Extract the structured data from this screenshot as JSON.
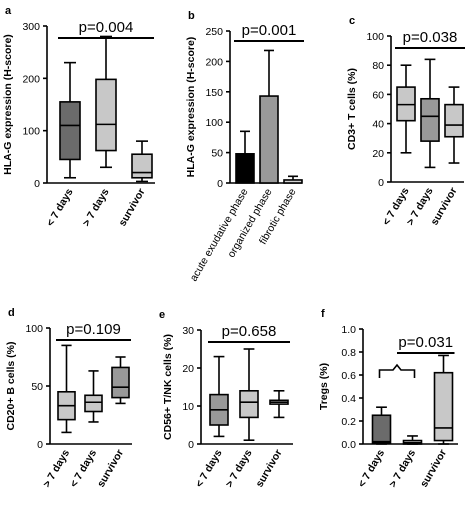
{
  "chart_data": [
    {
      "type": "box",
      "panel": "a",
      "ylabel": "HLA-G expression (H-score)",
      "ylim": [
        0,
        300
      ],
      "yticks": [
        0,
        100,
        200,
        300
      ],
      "categories": [
        "< 7 days",
        "> 7 days",
        "survivor"
      ],
      "boxes": [
        {
          "min": 10,
          "q1": 45,
          "median": 110,
          "q3": 155,
          "max": 230
        },
        {
          "min": 30,
          "q1": 62,
          "median": 112,
          "q3": 198,
          "max": 280
        },
        {
          "min": 3,
          "q1": 10,
          "median": 20,
          "q3": 55,
          "max": 80
        }
      ],
      "fills": [
        "#6b6b6b",
        "#c8c8c8",
        "#c8c8c8"
      ],
      "pvalue": "p=0.004",
      "bracket": {
        "from": 0,
        "to": 2
      }
    },
    {
      "type": "bar",
      "panel": "b",
      "ylabel": "HLA-G expression (H-score)",
      "ylim": [
        0,
        250
      ],
      "yticks": [
        0,
        50,
        100,
        150,
        200,
        250
      ],
      "categories": [
        "acute exudative phase",
        "organized phase",
        "fibrotic phase"
      ],
      "values": [
        48,
        143,
        5
      ],
      "errors": [
        85,
        218,
        11
      ],
      "fills": [
        "#000000",
        "#999999",
        "#d2d2d2"
      ],
      "pvalue": "p=0.001",
      "bracket": {
        "from": 0,
        "to": 2
      }
    },
    {
      "type": "box",
      "panel": "c",
      "ylabel": "CD3+ T cells (%)",
      "ylim": [
        0,
        100
      ],
      "yticks": [
        0,
        20,
        40,
        60,
        80,
        100
      ],
      "categories": [
        "< 7 days",
        "> 7 days",
        "survivor"
      ],
      "boxes": [
        {
          "min": 20,
          "q1": 42,
          "median": 53,
          "q3": 65,
          "max": 80
        },
        {
          "min": 10,
          "q1": 28,
          "median": 45,
          "q3": 57,
          "max": 84
        },
        {
          "min": 13,
          "q1": 31,
          "median": 39,
          "q3": 53,
          "max": 65
        }
      ],
      "fills": [
        "#c8c8c8",
        "#999999",
        "#c8c8c8"
      ],
      "pvalue": "p=0.038",
      "bracket": {
        "from": 0,
        "to": 2
      }
    },
    {
      "type": "box",
      "panel": "d",
      "ylabel": "CD20+ B cells (%)",
      "ylim": [
        0,
        100
      ],
      "yticks": [
        0,
        50,
        100
      ],
      "categories": [
        "> 7 days",
        "< 7 days",
        "survivor"
      ],
      "boxes": [
        {
          "min": 10,
          "q1": 21,
          "median": 33,
          "q3": 45,
          "max": 85
        },
        {
          "min": 19,
          "q1": 28,
          "median": 36,
          "q3": 42,
          "max": 63
        },
        {
          "min": 35,
          "q1": 40,
          "median": 49,
          "q3": 66,
          "max": 75
        }
      ],
      "fills": [
        "#c8c8c8",
        "#c8c8c8",
        "#999999"
      ],
      "pvalue": "p=0.109",
      "bracket": {
        "from": 0,
        "to": 2
      }
    },
    {
      "type": "box",
      "panel": "e",
      "ylabel": "CD56+ T/NK cells (%)",
      "ylim": [
        0,
        30
      ],
      "yticks": [
        0,
        10,
        20,
        30
      ],
      "categories": [
        "< 7 days",
        "> 7 days",
        "survivor"
      ],
      "boxes": [
        {
          "min": 2,
          "q1": 5,
          "median": 9,
          "q3": 13,
          "max": 23
        },
        {
          "min": 1,
          "q1": 7,
          "median": 11,
          "q3": 14,
          "max": 25
        },
        {
          "min": 7,
          "q1": 10.5,
          "median": 11,
          "q3": 11.5,
          "max": 14
        }
      ],
      "fills": [
        "#999999",
        "#c8c8c8",
        "#ffffff"
      ],
      "pvalue": "p=0.658",
      "bracket": {
        "from": 0,
        "to": 2
      }
    },
    {
      "type": "box",
      "panel": "f",
      "ylabel": "Tregs (%)",
      "ylim": [
        0,
        1.0
      ],
      "yticks": [
        0.0,
        0.2,
        0.4,
        0.6,
        0.8,
        1.0
      ],
      "categories": [
        "< 7 days",
        "> 7 days",
        "survivor"
      ],
      "boxes": [
        {
          "min": 0,
          "q1": 0.01,
          "median": 0.02,
          "q3": 0.25,
          "max": 0.32
        },
        {
          "min": 0,
          "q1": 0.0,
          "median": 0.01,
          "q3": 0.03,
          "max": 0.07
        },
        {
          "min": 0,
          "q1": 0.03,
          "median": 0.14,
          "q3": 0.62,
          "max": 0.77
        }
      ],
      "fills": [
        "#6b6b6b",
        "#c8c8c8",
        "#c8c8c8"
      ],
      "pvalue": "p=0.031",
      "bracket": {
        "from": 0,
        "to": 2
      },
      "group_bracket": {
        "from": 0,
        "to": 1
      }
    }
  ]
}
